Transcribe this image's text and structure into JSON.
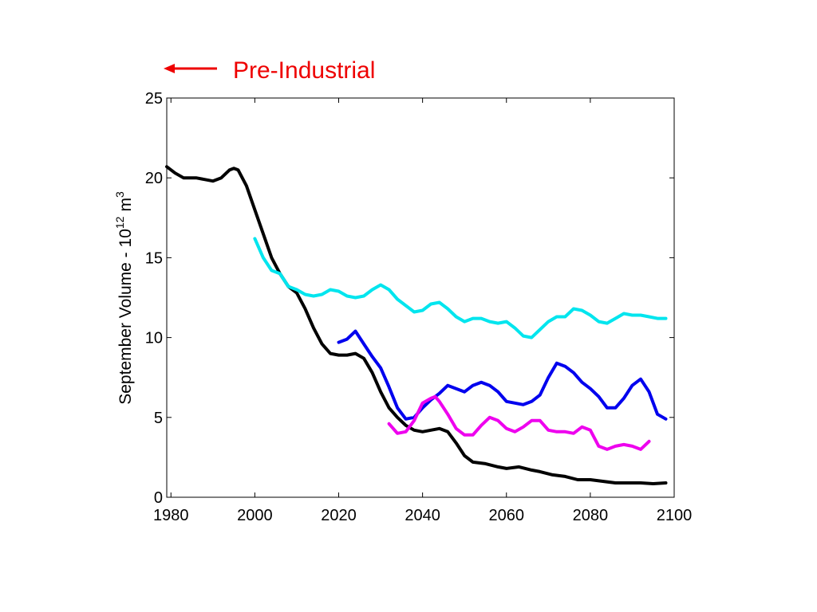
{
  "chart_data": {
    "type": "line",
    "title": "",
    "xlabel": "",
    "ylabel": {
      "text": "September Volume - 10",
      "exponent": "12",
      "unit": "m",
      "unit_exponent": "3"
    },
    "xlim": [
      1979,
      2100
    ],
    "ylim": [
      0,
      25
    ],
    "xticks": [
      1980,
      2000,
      2020,
      2040,
      2060,
      2080,
      2100
    ],
    "yticks": [
      0,
      5,
      10,
      15,
      20,
      25
    ],
    "grid": false,
    "annotation": {
      "text": "Pre-Industrial",
      "color": "#ee0000",
      "arrow": "left"
    },
    "series": [
      {
        "color": "#000000",
        "x": [
          1979,
          1981,
          1983,
          1986,
          1988,
          1990,
          1992,
          1994,
          1995,
          1996,
          1998,
          2000,
          2002,
          2004,
          2006,
          2008,
          2010,
          2012,
          2014,
          2016,
          2018,
          2020,
          2022,
          2024,
          2026,
          2028,
          2030,
          2032,
          2034,
          2036,
          2038,
          2040,
          2042,
          2044,
          2046,
          2048,
          2050,
          2052,
          2055,
          2058,
          2060,
          2063,
          2066,
          2068,
          2071,
          2074,
          2077,
          2080,
          2083,
          2086,
          2089,
          2092,
          2095,
          2098
        ],
        "y": [
          20.7,
          20.3,
          20.0,
          20.0,
          19.9,
          19.8,
          20.0,
          20.5,
          20.6,
          20.5,
          19.5,
          18.0,
          16.5,
          15.0,
          14.0,
          13.2,
          12.8,
          11.8,
          10.6,
          9.6,
          9.0,
          8.9,
          8.9,
          9.0,
          8.7,
          7.8,
          6.6,
          5.6,
          5.0,
          4.5,
          4.2,
          4.1,
          4.2,
          4.3,
          4.1,
          3.4,
          2.6,
          2.2,
          2.1,
          1.9,
          1.8,
          1.9,
          1.7,
          1.6,
          1.4,
          1.3,
          1.1,
          1.1,
          1.0,
          0.9,
          0.9,
          0.9,
          0.85,
          0.9
        ]
      },
      {
        "color": "#00e5ee",
        "x": [
          2000,
          2002,
          2004,
          2006,
          2008,
          2010,
          2012,
          2014,
          2016,
          2018,
          2020,
          2022,
          2024,
          2026,
          2028,
          2030,
          2032,
          2034,
          2036,
          2038,
          2040,
          2042,
          2044,
          2046,
          2048,
          2050,
          2052,
          2054,
          2056,
          2058,
          2060,
          2062,
          2064,
          2066,
          2068,
          2070,
          2072,
          2074,
          2076,
          2078,
          2080,
          2082,
          2084,
          2086,
          2088,
          2090,
          2092,
          2094,
          2096,
          2098
        ],
        "y": [
          16.2,
          15.0,
          14.2,
          14.0,
          13.2,
          13.0,
          12.7,
          12.6,
          12.7,
          13.0,
          12.9,
          12.6,
          12.5,
          12.6,
          13.0,
          13.3,
          13.0,
          12.4,
          12.0,
          11.6,
          11.7,
          12.1,
          12.2,
          11.8,
          11.3,
          11.0,
          11.2,
          11.2,
          11.0,
          10.9,
          11.0,
          10.6,
          10.1,
          10.0,
          10.5,
          11.0,
          11.3,
          11.3,
          11.8,
          11.7,
          11.4,
          11.0,
          10.9,
          11.2,
          11.5,
          11.4,
          11.4,
          11.3,
          11.2,
          11.2
        ]
      },
      {
        "color": "#0000ee",
        "x": [
          2020,
          2022,
          2024,
          2026,
          2028,
          2030,
          2032,
          2034,
          2036,
          2038,
          2040,
          2042,
          2044,
          2046,
          2048,
          2050,
          2052,
          2054,
          2056,
          2058,
          2060,
          2062,
          2064,
          2066,
          2068,
          2070,
          2072,
          2074,
          2076,
          2078,
          2080,
          2082,
          2084,
          2086,
          2088,
          2090,
          2092,
          2094,
          2096,
          2098
        ],
        "y": [
          9.7,
          9.9,
          10.4,
          9.6,
          8.8,
          8.1,
          6.9,
          5.6,
          4.9,
          5.0,
          5.6,
          6.1,
          6.5,
          7.0,
          6.8,
          6.6,
          7.0,
          7.2,
          7.0,
          6.6,
          6.0,
          5.9,
          5.8,
          6.0,
          6.4,
          7.5,
          8.4,
          8.2,
          7.8,
          7.2,
          6.8,
          6.3,
          5.6,
          5.6,
          6.2,
          7.0,
          7.4,
          6.6,
          5.2,
          4.9
        ]
      },
      {
        "color": "#ee00ee",
        "x": [
          2032,
          2034,
          2036,
          2038,
          2040,
          2042,
          2043,
          2044,
          2046,
          2048,
          2050,
          2052,
          2054,
          2056,
          2058,
          2060,
          2062,
          2064,
          2066,
          2068,
          2070,
          2072,
          2074,
          2076,
          2078,
          2080,
          2082,
          2084,
          2086,
          2088,
          2090,
          2092,
          2094
        ],
        "y": [
          4.6,
          4.0,
          4.1,
          4.8,
          5.9,
          6.2,
          6.3,
          6.0,
          5.2,
          4.3,
          3.9,
          3.9,
          4.5,
          5.0,
          4.8,
          4.3,
          4.1,
          4.4,
          4.8,
          4.8,
          4.2,
          4.1,
          4.1,
          4.0,
          4.4,
          4.2,
          3.2,
          3.0,
          3.2,
          3.3,
          3.2,
          3.0,
          3.5
        ]
      }
    ]
  }
}
